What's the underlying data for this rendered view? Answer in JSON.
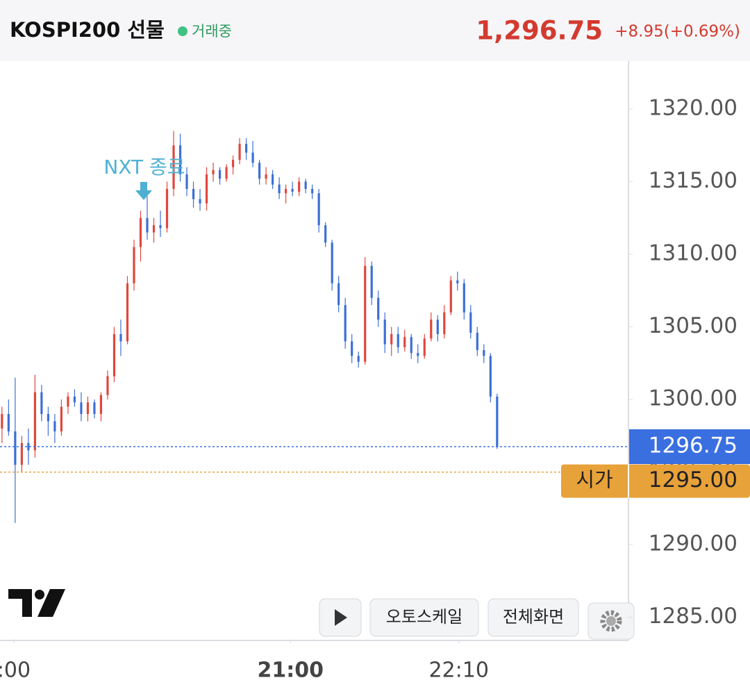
{
  "header": {
    "title": "KOSPI200 선물",
    "status": "거래중",
    "price": "1,296.75",
    "change": "+8.95(+0.69%)"
  },
  "controls": {
    "autoscale": "오토스케일",
    "fullscreen": "전체화면"
  },
  "chart_data": {
    "type": "candlestick",
    "annotation": "NXT 종료",
    "open": [
      1298,
      1299,
      1297.8,
      1295.5,
      1297,
      1296.5,
      1300.5,
      1299,
      1298.5,
      1297.8,
      1299.5,
      1300.2,
      1299.8,
      1299,
      1299.8,
      1299,
      1300.3,
      1301.6,
      1304.5,
      1304,
      1308,
      1310.5,
      1312.5,
      1311.5,
      1312,
      1311.8,
      1314.5,
      1317.5,
      1315.5,
      1314.5,
      1313.8,
      1313.5,
      1315.5,
      1315.8,
      1315.2,
      1316,
      1316.5,
      1317.6,
      1317,
      1316.3,
      1315.2,
      1315.5,
      1314.8,
      1314.2,
      1314.5,
      1314.3,
      1315,
      1314.5,
      1314.2,
      1312,
      1310.8,
      1308,
      1306.5,
      1304,
      1303,
      1302.6,
      1309.2,
      1307,
      1305.5,
      1303.8,
      1304.5,
      1303.6,
      1304.3,
      1303.2,
      1303,
      1304.2,
      1305.5,
      1304.5,
      1306,
      1308.2,
      1308,
      1306,
      1304.6,
      1303.4,
      1303,
      1300.2
    ],
    "high": [
      1299.5,
      1300,
      1301.5,
      1297.5,
      1298,
      1301.7,
      1301,
      1299.5,
      1299,
      1300,
      1300.5,
      1300.7,
      1300.5,
      1300.2,
      1300,
      1300.5,
      1302,
      1305,
      1305.5,
      1308.5,
      1311,
      1313,
      1314,
      1312.5,
      1313,
      1315,
      1318.5,
      1318.3,
      1316,
      1315,
      1314.5,
      1316,
      1316.3,
      1316,
      1316.2,
      1316.8,
      1318,
      1318,
      1317.8,
      1316.5,
      1316,
      1315.8,
      1315.3,
      1314.8,
      1315,
      1315.3,
      1315.2,
      1314.8,
      1314.5,
      1312.2,
      1311,
      1308.5,
      1307,
      1304.5,
      1303.3,
      1309.8,
      1309.5,
      1307.5,
      1306,
      1305,
      1305,
      1304.8,
      1304.5,
      1303.8,
      1304.5,
      1306,
      1305.8,
      1306.5,
      1308.5,
      1308.8,
      1308.3,
      1306.5,
      1305,
      1303.8,
      1303.2,
      1300.4
    ],
    "low": [
      1297,
      1297.5,
      1291.5,
      1295,
      1295.5,
      1296,
      1298.5,
      1297.5,
      1297,
      1297.5,
      1299,
      1299.5,
      1298.5,
      1298.5,
      1298.7,
      1298.5,
      1300,
      1301.2,
      1303,
      1303.8,
      1307.5,
      1309.5,
      1311,
      1310.8,
      1311.2,
      1311.5,
      1314,
      1315,
      1314,
      1313.2,
      1313,
      1313,
      1315,
      1314.8,
      1315,
      1315.5,
      1316.2,
      1316.5,
      1316,
      1314.8,
      1314.8,
      1314.5,
      1313.8,
      1313.5,
      1314,
      1314,
      1314.2,
      1313.8,
      1311.5,
      1310.5,
      1307.5,
      1306,
      1303.5,
      1302.5,
      1302.2,
      1302.4,
      1306.5,
      1305,
      1303.2,
      1303,
      1303.2,
      1303.3,
      1302.8,
      1302.5,
      1302.8,
      1304,
      1304,
      1304.2,
      1305.8,
      1307.5,
      1305.5,
      1304.2,
      1303,
      1302.5,
      1299.8,
      1296.6
    ],
    "close": [
      1299,
      1297.8,
      1295.5,
      1297,
      1296.5,
      1300.5,
      1299,
      1298.5,
      1297.8,
      1299.5,
      1300.2,
      1299.8,
      1299,
      1299.8,
      1299,
      1300.3,
      1301.6,
      1304.5,
      1304,
      1308,
      1310.5,
      1312.5,
      1311.5,
      1312,
      1311.8,
      1314.5,
      1317.5,
      1315.5,
      1314.5,
      1313.8,
      1313.5,
      1315.5,
      1315.8,
      1315.2,
      1316,
      1316.5,
      1317.6,
      1317,
      1316.3,
      1315.2,
      1315.5,
      1314.8,
      1314.2,
      1314.5,
      1314.3,
      1315,
      1314.5,
      1314.2,
      1312,
      1310.8,
      1308,
      1306.5,
      1304,
      1303,
      1302.6,
      1309.2,
      1307,
      1305.5,
      1303.8,
      1304.5,
      1303.6,
      1304.3,
      1303.2,
      1303,
      1304.2,
      1305.5,
      1304.5,
      1306,
      1308.2,
      1308,
      1306,
      1304.6,
      1303.4,
      1303,
      1300.2,
      1296.75
    ],
    "up_color": "#e0473d",
    "down_color": "#3c6fd6",
    "ylim": [
      1283.5,
      1323.3
    ],
    "yticks": [
      {
        "value": 1285,
        "label": "1285.00"
      },
      {
        "value": 1290,
        "label": "1290.00"
      },
      {
        "value": 1295,
        "label": "1295.00"
      },
      {
        "value": 1300,
        "label": "1300.00"
      },
      {
        "value": 1305,
        "label": "1305.00"
      },
      {
        "value": 1310,
        "label": "1310.00"
      },
      {
        "value": 1315,
        "label": "1315.00"
      },
      {
        "value": 1320,
        "label": "1320.00"
      }
    ],
    "xlim": [
      -0.3,
      94.9
    ],
    "xticks": [
      {
        "value": 1.8,
        "label": ":00"
      },
      {
        "value": 43.7,
        "label": "21:00"
      },
      {
        "value": 69.2,
        "label": "22:10"
      }
    ],
    "last_price": 1296.75,
    "last_color": "#3a6fe0",
    "open_price": {
      "value": 1295,
      "label": "1295.00"
    },
    "open_label": "시가",
    "open_color": "#e8a23a"
  }
}
